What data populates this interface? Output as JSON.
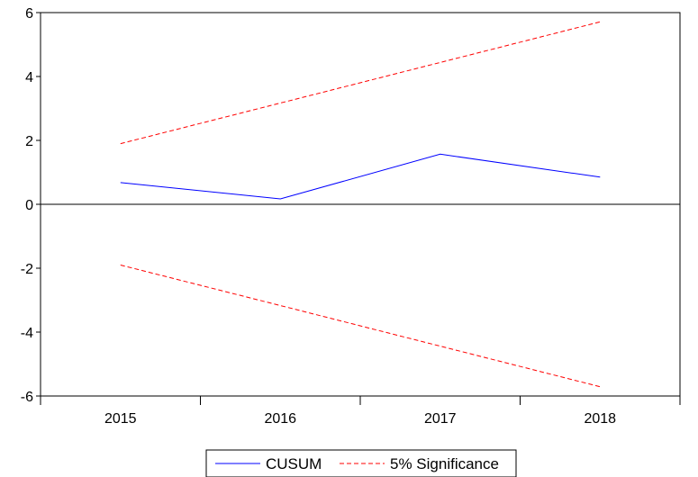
{
  "chart_data": {
    "type": "line",
    "categories": [
      "2015",
      "2016",
      "2017",
      "2018"
    ],
    "x": [
      2015,
      2016,
      2017,
      2018
    ],
    "series": [
      {
        "name": "CUSUM",
        "values": [
          0.68,
          0.17,
          1.57,
          0.85
        ],
        "color": "#0000ff",
        "dash": "solid"
      },
      {
        "name": "5% Significance",
        "values": [
          1.9,
          3.17,
          4.44,
          5.71
        ],
        "color": "#ff0000",
        "dash": "dashed"
      },
      {
        "name": "",
        "values": [
          -1.9,
          -3.17,
          -4.44,
          -5.71
        ],
        "color": "#ff0000",
        "dash": "dashed"
      }
    ],
    "yticks": [
      "6",
      "4",
      "2",
      "0",
      "-2",
      "-4",
      "-6"
    ],
    "ylim": [
      -6,
      6
    ],
    "zero_line": true,
    "grid": false,
    "legend_position": "bottom-center",
    "title": "",
    "xlabel": "",
    "ylabel": ""
  }
}
